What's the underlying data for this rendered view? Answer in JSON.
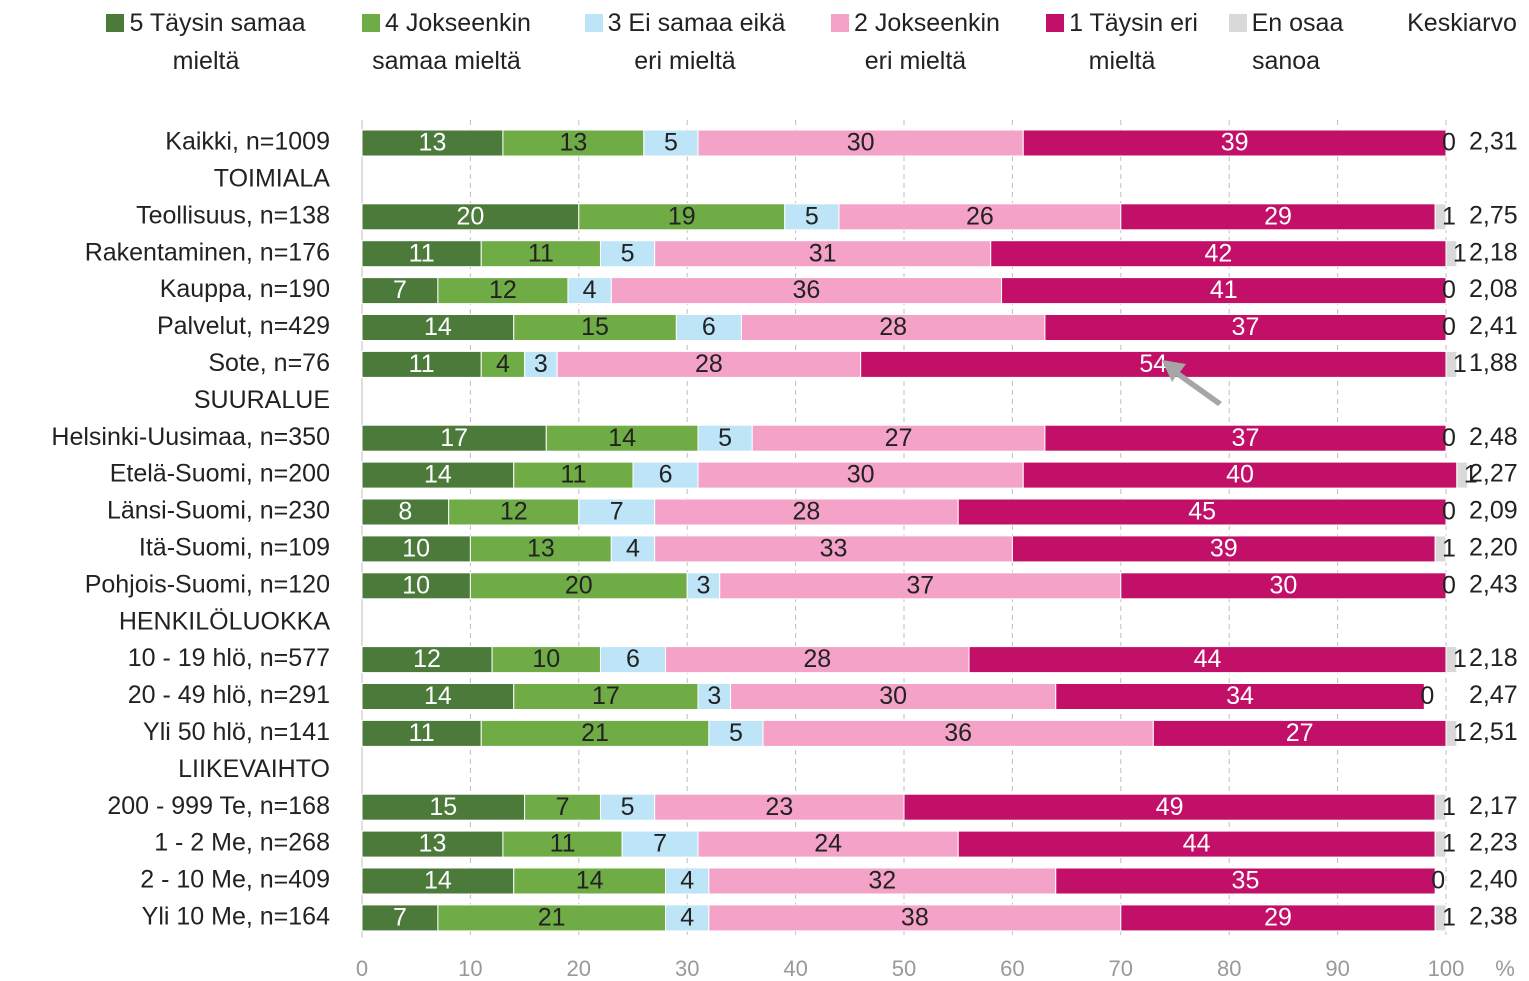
{
  "chart_data": {
    "type": "stacked_barh",
    "categories": [
      "Kaikki, n=1009",
      "TOIMIALA",
      "Teollisuus, n=138",
      "Rakentaminen, n=176",
      "Kauppa, n=190",
      "Palvelut, n=429",
      "Sote, n=76",
      "SUURALUE",
      "Helsinki-Uusimaa, n=350",
      "Etelä-Suomi, n=200",
      "Länsi-Suomi, n=230",
      "Itä-Suomi, n=109",
      "Pohjois-Suomi, n=120",
      "HENKILÖLUOKKA",
      "10 - 19 hlö, n=577",
      "20 - 49 hlö, n=291",
      "Yli 50 hlö, n=141",
      "LIIKEVAIHTO",
      "200 - 999 Te, n=168",
      "1 - 2  Me, n=268",
      "2 - 10 Me, n=409",
      "Yli 10 Me, n=164"
    ],
    "series": [
      {
        "name": "5 Täysin samaa mieltä",
        "color": "#4b7a3a",
        "values": [
          13,
          null,
          20,
          11,
          7,
          14,
          11,
          null,
          17,
          14,
          8,
          10,
          10,
          null,
          12,
          14,
          11,
          null,
          15,
          13,
          14,
          7
        ]
      },
      {
        "name": "4 Jokseenkin samaa mieltä",
        "color": "#6fac46",
        "values": [
          13,
          null,
          19,
          11,
          12,
          15,
          4,
          null,
          14,
          11,
          12,
          13,
          20,
          null,
          10,
          17,
          21,
          null,
          7,
          11,
          14,
          21
        ]
      },
      {
        "name": "3 Ei samaa eikä eri mieltä",
        "color": "#bde4f7",
        "values": [
          5,
          null,
          5,
          5,
          4,
          6,
          3,
          null,
          5,
          6,
          7,
          4,
          3,
          null,
          6,
          3,
          5,
          null,
          5,
          7,
          4,
          4
        ]
      },
      {
        "name": "2 Jokseenkin eri mieltä",
        "color": "#f4a2c8",
        "values": [
          30,
          null,
          26,
          31,
          36,
          28,
          28,
          null,
          27,
          30,
          28,
          33,
          37,
          null,
          28,
          30,
          36,
          null,
          23,
          24,
          32,
          38
        ]
      },
      {
        "name": "1 Täysin eri mieltä",
        "color": "#c21069",
        "values": [
          39,
          null,
          29,
          42,
          41,
          37,
          54,
          null,
          37,
          40,
          45,
          39,
          30,
          null,
          44,
          34,
          27,
          null,
          49,
          44,
          35,
          29
        ]
      },
      {
        "name": "En osaa sanoa",
        "color": "#d9d9d9",
        "values": [
          0,
          null,
          1,
          1,
          0,
          0,
          1,
          null,
          0,
          1,
          0,
          1,
          0,
          null,
          1,
          0,
          1,
          null,
          1,
          1,
          0,
          1
        ]
      }
    ],
    "averages": {
      "name": "Keskiarvo",
      "values": [
        2.31,
        null,
        2.75,
        2.18,
        2.08,
        2.41,
        1.88,
        null,
        2.48,
        2.27,
        2.09,
        2.2,
        2.43,
        null,
        2.18,
        2.47,
        2.51,
        null,
        2.17,
        2.23,
        2.4,
        2.38
      ],
      "value_labels": [
        "2,31",
        null,
        "2,75",
        "2,18",
        "2,08",
        "2,41",
        "1,88",
        null,
        "2,48",
        "2,27",
        "2,09",
        "2,20",
        "2,43",
        null,
        "2,18",
        "2,47",
        "2,51",
        null,
        "2,17",
        "2,23",
        "2,40",
        "2,38"
      ]
    },
    "x_label": "%",
    "xlim": [
      0,
      100
    ],
    "xticks": [
      0,
      10,
      20,
      30,
      40,
      50,
      60,
      70,
      80,
      90,
      100
    ],
    "grid": true
  }
}
